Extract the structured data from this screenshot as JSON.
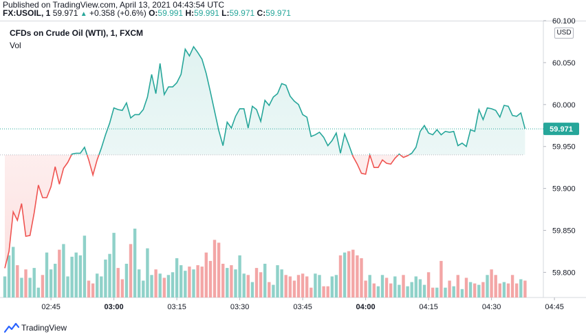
{
  "header": {
    "published": "Published on TradingView.com, April 13, 2021 04:43:54 UTC",
    "symbol": "FX:USOIL, 1",
    "last": "59.971",
    "change": "+0.358 (+0.6%)",
    "open_label": "O:",
    "open": "59.991",
    "high_label": "H:",
    "high": "59.991",
    "low_label": "L:",
    "low": "59.971",
    "close_label": "C:",
    "close": "59.971"
  },
  "chart": {
    "title": "CFDs on Crude Oil (WTI), 1, FXCM",
    "vol_label": "Vol",
    "currency": "USD",
    "price_label": "59.971"
  },
  "footer": {
    "brand": "TradingView"
  },
  "colors": {
    "up": "#26a69a",
    "down": "#ef5350",
    "up_vol": "#8fd1c9",
    "down_vol": "#f3a6a6"
  },
  "chart_data": {
    "type": "line",
    "ylim": [
      59.77,
      60.1
    ],
    "yticks": [
      "60.100",
      "60.050",
      "60.000",
      "59.950",
      "59.900",
      "59.850",
      "59.800"
    ],
    "xticks": [
      "02:45",
      "03:00",
      "03:15",
      "03:30",
      "03:45",
      "04:00",
      "04:15",
      "04:30",
      "04:45"
    ],
    "bold_xticks": [
      "03:00",
      "04:00"
    ],
    "baseline": 59.94,
    "x_start": "02:34",
    "interval_minutes": 1,
    "last_value": 59.971,
    "price": [
      59.805,
      59.825,
      59.872,
      59.862,
      59.882,
      59.843,
      59.844,
      59.871,
      59.904,
      59.889,
      59.889,
      59.902,
      59.926,
      59.905,
      59.924,
      59.931,
      59.941,
      59.942,
      59.942,
      59.949,
      59.934,
      59.916,
      59.934,
      59.948,
      59.964,
      59.978,
      59.996,
      59.994,
      59.993,
      60.002,
      59.984,
      59.988,
      59.988,
      59.994,
      60.009,
      60.036,
      60.013,
      60.049,
      60.012,
      60.021,
      60.021,
      60.026,
      60.036,
      60.066,
      60.058,
      60.069,
      60.062,
      60.054,
      60.037,
      60.015,
      59.992,
      59.969,
      59.951,
      59.979,
      59.972,
      59.986,
      59.995,
      59.995,
      59.972,
      59.998,
      59.994,
      59.98,
      60.005,
      59.999,
      60.009,
      60.013,
      60.025,
      60.023,
      60.01,
      60.004,
      60.0,
      59.988,
      59.985,
      59.962,
      59.964,
      59.967,
      59.961,
      59.951,
      59.957,
      59.966,
      59.942,
      59.965,
      59.952,
      59.938,
      59.929,
      59.918,
      59.917,
      59.94,
      59.925,
      59.925,
      59.934,
      59.93,
      59.929,
      59.936,
      59.941,
      59.937,
      59.939,
      59.942,
      59.949,
      59.968,
      59.975,
      59.966,
      59.964,
      59.97,
      59.964,
      59.968,
      59.967,
      59.968,
      59.951,
      59.954,
      59.95,
      59.97,
      59.968,
      59.994,
      59.982,
      59.996,
      59.995,
      59.993,
      59.985,
      59.999,
      59.998,
      59.987,
      59.986,
      59.99,
      59.971
    ],
    "volume": [
      15,
      30,
      36,
      23,
      14,
      20,
      14,
      21,
      7,
      16,
      32,
      20,
      24,
      34,
      38,
      15,
      29,
      32,
      30,
      44,
      12,
      10,
      17,
      15,
      27,
      31,
      46,
      21,
      13,
      24,
      38,
      49,
      20,
      12,
      35,
      16,
      20,
      17,
      14,
      16,
      18,
      28,
      23,
      19,
      22,
      20,
      23,
      22,
      32,
      26,
      41,
      39,
      24,
      21,
      23,
      20,
      30,
      17,
      16,
      11,
      21,
      18,
      24,
      11,
      9,
      23,
      20,
      16,
      15,
      12,
      16,
      17,
      15,
      7,
      17,
      16,
      8,
      8,
      15,
      16,
      30,
      32,
      33,
      34,
      30,
      28,
      12,
      16,
      10,
      8,
      16,
      14,
      10,
      15,
      9,
      16,
      8,
      11,
      15,
      13,
      9,
      18,
      7,
      7,
      26,
      7,
      12,
      8,
      16,
      6,
      14,
      11,
      10,
      9,
      11,
      16,
      20,
      16,
      10,
      11,
      10,
      16,
      10,
      13,
      12
    ]
  }
}
